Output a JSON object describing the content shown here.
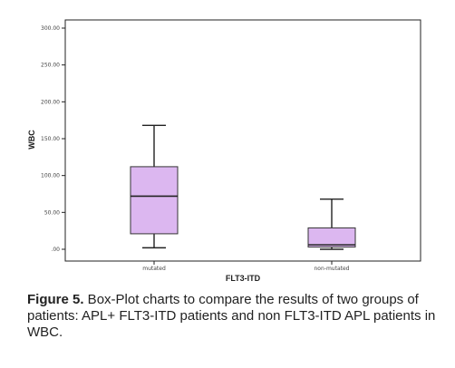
{
  "chart_data": {
    "type": "box",
    "xlabel": "FLT3-ITD",
    "ylabel": "WBC",
    "ylim": [
      0,
      300
    ],
    "yticks": [
      0,
      50,
      100,
      150,
      200,
      250,
      300
    ],
    "ytick_labels": [
      ".00",
      "50.00",
      "100.00",
      "150.00",
      "200.00",
      "250.00",
      "300.00"
    ],
    "categories": [
      "mutated",
      "non-mutated"
    ],
    "boxes": [
      {
        "name": "mutated",
        "min": 2,
        "q1": 21,
        "median": 72,
        "q3": 112,
        "max": 168
      },
      {
        "name": "non-mutated",
        "min": 0,
        "q1": 3,
        "median": 6,
        "q3": 29,
        "max": 68
      }
    ],
    "box_color": "#dcb7f0",
    "grid": false,
    "legend": "none"
  },
  "caption": {
    "label": "Figure 5.",
    "text": " Box-Plot charts to compare the results of two groups of patients: APL+ FLT3-ITD patients and non FLT3-ITD APL patients in WBC."
  }
}
